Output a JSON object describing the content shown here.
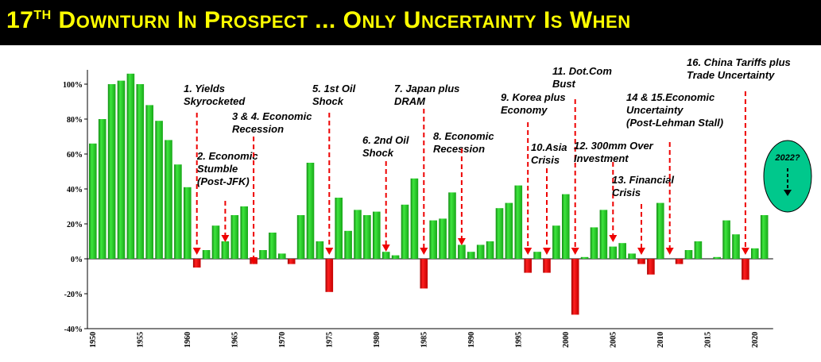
{
  "title": {
    "prefix": "17",
    "sup": "TH",
    "words": [
      "Downturn",
      "In",
      "Prospect",
      "...",
      "Only",
      "Uncertainty",
      "Is",
      "When"
    ]
  },
  "colors": {
    "positive": "#22cc22",
    "negative": "#ee0000",
    "title_text": "#ffff00",
    "title_bg": "#000000",
    "oval_fill": "#00c88c",
    "arrow": "#ee0000"
  },
  "chart_data": {
    "type": "bar",
    "x": [
      1950,
      1951,
      1952,
      1953,
      1954,
      1955,
      1956,
      1957,
      1958,
      1959,
      1960,
      1961,
      1962,
      1963,
      1964,
      1965,
      1966,
      1967,
      1968,
      1969,
      1970,
      1971,
      1972,
      1973,
      1974,
      1975,
      1976,
      1977,
      1978,
      1979,
      1980,
      1981,
      1982,
      1983,
      1984,
      1985,
      1986,
      1987,
      1988,
      1989,
      1990,
      1991,
      1992,
      1993,
      1994,
      1995,
      1996,
      1997,
      1998,
      1999,
      2000,
      2001,
      2002,
      2003,
      2004,
      2005,
      2006,
      2007,
      2008,
      2009,
      2010,
      2011,
      2012,
      2013,
      2014,
      2015,
      2016,
      2017,
      2018,
      2019,
      2020,
      2021
    ],
    "values": [
      66,
      80,
      100,
      102,
      106,
      100,
      88,
      79,
      68,
      54,
      41,
      -5,
      5,
      19,
      10,
      25,
      30,
      -3,
      5,
      15,
      3,
      -3,
      25,
      55,
      10,
      -19,
      35,
      16,
      28,
      25,
      27,
      4,
      2,
      31,
      46,
      -17,
      22,
      23,
      38,
      8,
      4,
      8,
      10,
      29,
      32,
      42,
      -8,
      4,
      -8,
      19,
      37,
      -32,
      1,
      18,
      28,
      7,
      9,
      3,
      -3,
      -9,
      32,
      0,
      -3,
      5,
      10,
      0,
      1,
      22,
      14,
      -12,
      6,
      25
    ],
    "x_ticks": [
      "1950",
      "1955",
      "1960",
      "1965",
      "1970",
      "1975",
      "1980",
      "1985",
      "1990",
      "1995",
      "2000",
      "2005",
      "2010",
      "2015",
      "2020"
    ],
    "y_ticks": [
      "100%",
      "80%",
      "60%",
      "40%",
      "20%",
      "0%",
      "-20%",
      "-40%"
    ],
    "ylim": [
      -40,
      110
    ],
    "grid": false,
    "annotations": [
      {
        "lines": [
          "1. Yields",
          "Skyrocketed"
        ],
        "year": 1961
      },
      {
        "lines": [
          "2. Economic",
          "Stumble",
          "(Post-JFK)"
        ],
        "year": 1964
      },
      {
        "lines": [
          "3 & 4. Economic",
          "Recession"
        ],
        "year": 1967
      },
      {
        "lines": [
          "5. 1st Oil",
          "Shock"
        ],
        "year": 1975
      },
      {
        "lines": [
          "6. 2nd Oil",
          "Shock"
        ],
        "year": 1981
      },
      {
        "lines": [
          "7. Japan plus",
          "DRAM"
        ],
        "year": 1985
      },
      {
        "lines": [
          "8. Economic",
          "Recession"
        ],
        "year": 1989
      },
      {
        "lines": [
          "9. Korea plus",
          "Economy"
        ],
        "year": 1996
      },
      {
        "lines": [
          "10.Asia",
          "Crisis"
        ],
        "year": 1998
      },
      {
        "lines": [
          "11. Dot.Com",
          "Bust"
        ],
        "year": 2001
      },
      {
        "lines": [
          "12. 300mm Over",
          "Investment"
        ],
        "year": 2005
      },
      {
        "lines": [
          "13. Financial",
          "Crisis"
        ],
        "year": 2008
      },
      {
        "lines": [
          "14 & 15.Economic",
          "Uncertainty",
          "(Post-Lehman Stall)"
        ],
        "year": 2011
      },
      {
        "lines": [
          "16. China Tariffs plus",
          "Trade Uncertainty"
        ],
        "year": 2019
      }
    ],
    "forecast_label": "2022?"
  }
}
